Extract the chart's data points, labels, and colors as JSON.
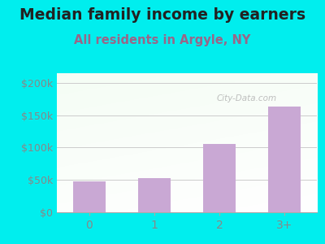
{
  "title": "Median family income by earners",
  "subtitle": "All residents in Argyle, NY",
  "categories": [
    "0",
    "1",
    "2",
    "3+"
  ],
  "values": [
    48000,
    53000,
    105000,
    163000
  ],
  "bar_color": "#c9a8d4",
  "title_color": "#222222",
  "subtitle_color": "#996688",
  "bg_color": "#00eeee",
  "yticks": [
    0,
    50000,
    100000,
    150000,
    200000
  ],
  "ytick_labels": [
    "$0",
    "$50k",
    "$100k",
    "$150k",
    "$200k"
  ],
  "ylim": [
    0,
    215000
  ],
  "watermark": "City-Data.com",
  "title_fontsize": 13.5,
  "subtitle_fontsize": 10.5,
  "tick_color": "#888888"
}
